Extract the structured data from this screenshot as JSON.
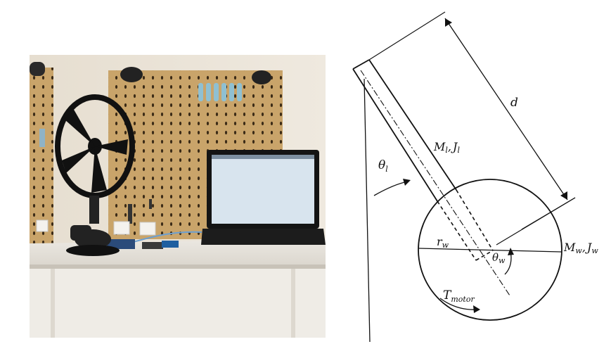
{
  "diagram": {
    "labels": {
      "length": "d",
      "link_mass_inertia_main": "M",
      "link_mass_sub": "l",
      "link_sep": ",",
      "link_inertia_main": "J",
      "link_inertia_sub": "l",
      "wheel_mass_main": "M",
      "wheel_mass_sub": "w",
      "wheel_sep": ",",
      "wheel_inertia_main": "J",
      "wheel_inertia_sub": "w",
      "link_angle_main": "θ",
      "link_angle_sub": "l",
      "wheel_angle_main": "θ",
      "wheel_angle_sub": "w",
      "wheel_radius_main": "r",
      "wheel_radius_sub": "w",
      "torque_main": "T",
      "torque_sub": "motor"
    }
  },
  "colors": {
    "pegboard": "#c9a46a",
    "wall": "#e8e2d6",
    "desk": "#e4e0d8",
    "laptop_screen": "#d8e4ee",
    "line": "#111111"
  }
}
